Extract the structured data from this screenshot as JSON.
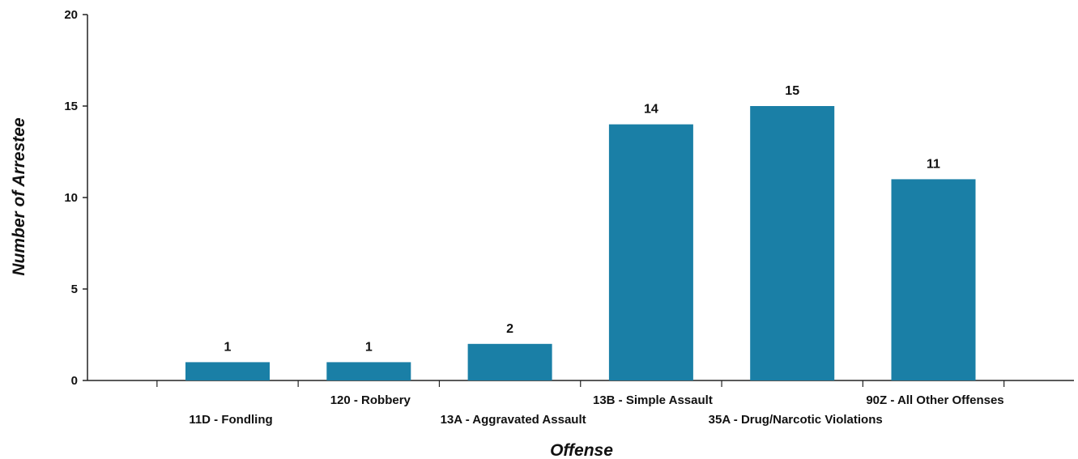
{
  "chart_data": {
    "type": "bar",
    "title": "",
    "xlabel": "Offense",
    "ylabel": "Number of Arrestee",
    "categories": [
      "11D - Fondling",
      "120 - Robbery",
      "13A - Aggravated Assault",
      "13B - Simple Assault",
      "35A - Drug/Narcotic Violations",
      "90Z - All Other Offenses"
    ],
    "values": [
      1,
      1,
      2,
      14,
      15,
      11
    ],
    "data_labels": [
      "1",
      "1",
      "2",
      "14",
      "15",
      "11"
    ],
    "yticks": [
      "0",
      "5",
      "10",
      "15",
      "20"
    ],
    "ylim": [
      0,
      20
    ],
    "bar_color": "#1a7fa6",
    "grid": false,
    "legend": "none"
  }
}
